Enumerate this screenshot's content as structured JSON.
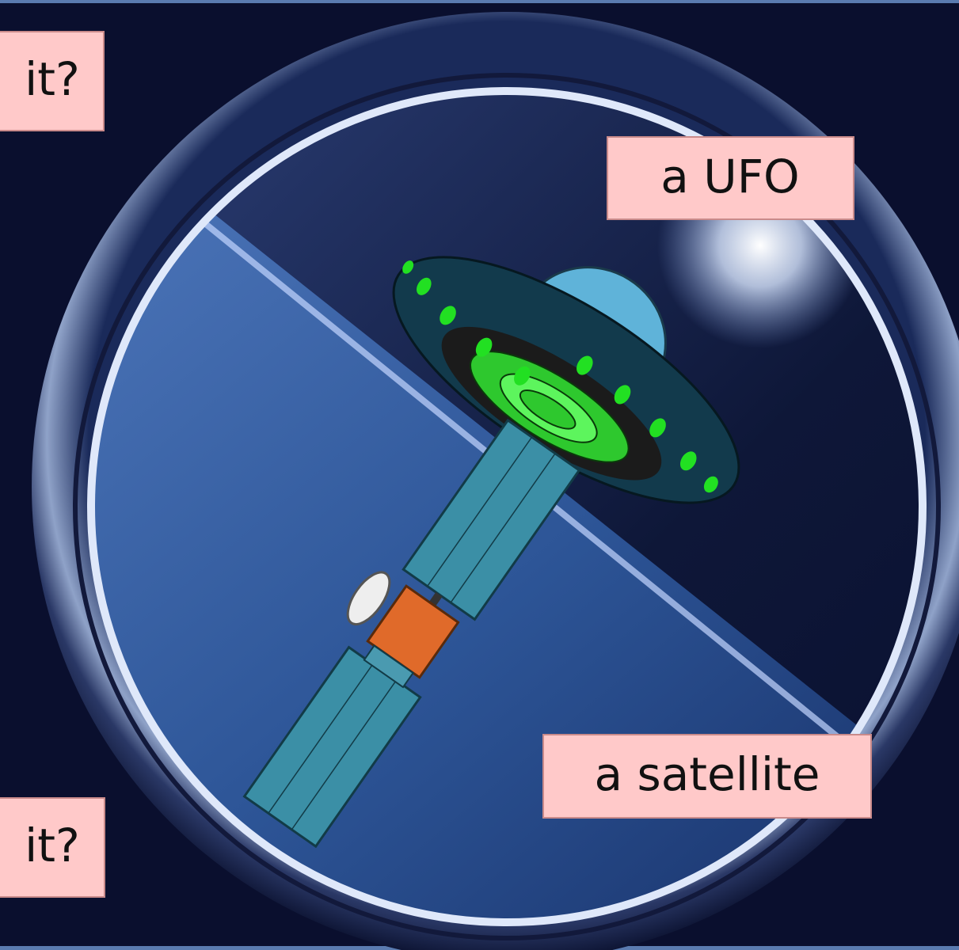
{
  "labels": [
    "it?",
    "a UFO",
    "a satellite",
    "it?"
  ]
}
